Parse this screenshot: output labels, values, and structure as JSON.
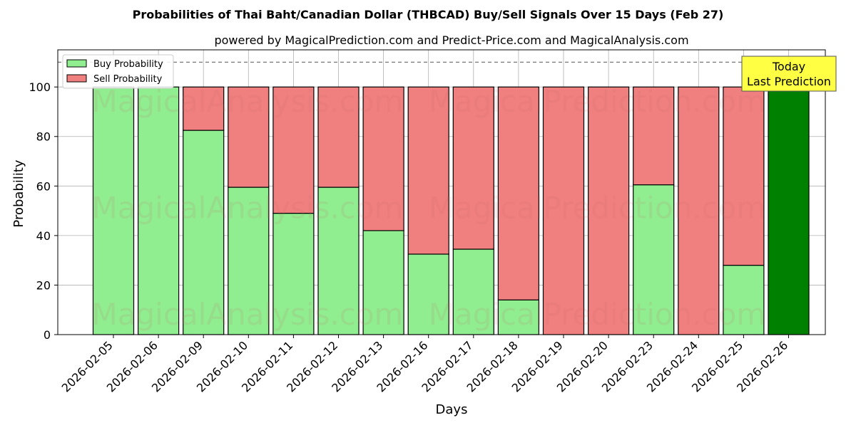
{
  "chart_data": {
    "type": "bar",
    "stacked": true,
    "title": "Probabilities of Thai Baht/Canadian Dollar (THBCAD) Buy/Sell Signals Over 15 Days (Feb 27)",
    "subtitle": "powered by MagicalPrediction.com and Predict-Price.com and MagicalAnalysis.com",
    "xlabel": "Days",
    "ylabel": "Probability",
    "ylim": [
      0,
      115
    ],
    "yticks": [
      0,
      20,
      40,
      60,
      80,
      100
    ],
    "grid": true,
    "legend_position": "top-left",
    "reference_line": 110,
    "categories": [
      "2026-02-05",
      "2026-02-06",
      "2026-02-09",
      "2026-02-10",
      "2026-02-11",
      "2026-02-12",
      "2026-02-13",
      "2026-02-16",
      "2026-02-17",
      "2026-02-18",
      "2026-02-19",
      "2026-02-20",
      "2026-02-23",
      "2026-02-24",
      "2026-02-25",
      "2026-02-26"
    ],
    "series": [
      {
        "name": "Buy Probability",
        "color": "#90EE90",
        "values": [
          100,
          100,
          82.5,
          59.5,
          49,
          59.5,
          42,
          32.5,
          34.5,
          14,
          0,
          0,
          60.5,
          0,
          28,
          100
        ]
      },
      {
        "name": "Sell Probability",
        "color": "#F08080",
        "values": [
          0,
          0,
          17.5,
          40.5,
          51,
          40.5,
          58,
          67.5,
          65.5,
          86,
          100,
          100,
          39.5,
          100,
          72,
          0
        ]
      }
    ],
    "highlight": {
      "category": "2026-02-26",
      "color": "#008000"
    },
    "annotation": {
      "line1": "Today",
      "line2": "Last Prediction",
      "background": "#FFFF44"
    },
    "watermarks": [
      "MagicalAnalysis.com",
      "MagicalPrediction.com"
    ]
  }
}
